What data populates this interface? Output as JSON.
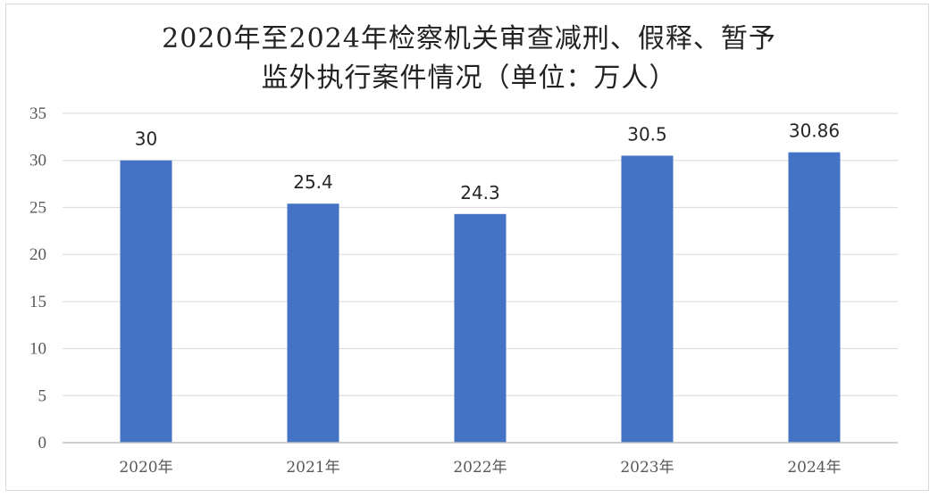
{
  "chart_data": {
    "type": "bar",
    "title": "2020年至2024年检察机关审查减刑、假释、暂予\n监外执行案件情况（单位：万人）",
    "categories": [
      "2020年",
      "2021年",
      "2022年",
      "2023年",
      "2024年"
    ],
    "series": [
      {
        "values": [
          30,
          25.4,
          24.3,
          30.5,
          30.86
        ],
        "data_labels": [
          "30",
          "25.4",
          "24.3",
          "30.5",
          "30.86"
        ]
      }
    ],
    "ylim": [
      0,
      35
    ],
    "yticks": [
      0,
      5,
      10,
      15,
      20,
      25,
      30,
      35
    ],
    "grid": true,
    "legend": "none",
    "colors": {
      "bar": "#4472C4",
      "grid": "#d9d9d9",
      "axis": "#bfbfbf"
    }
  }
}
